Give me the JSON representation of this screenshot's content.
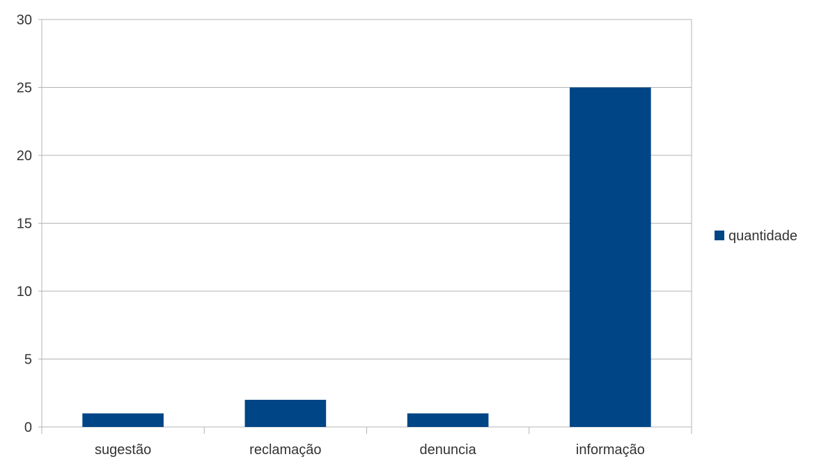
{
  "chart_data": {
    "type": "bar",
    "title": "",
    "xlabel": "",
    "ylabel": "",
    "categories": [
      "sugestão",
      "reclamação",
      "denuncia",
      "informação"
    ],
    "series": [
      {
        "name": "quantidade",
        "color": "#004586",
        "values": [
          1,
          2,
          1,
          25
        ]
      }
    ],
    "ylim": [
      0,
      30
    ],
    "yticks": [
      0,
      5,
      10,
      15,
      20,
      25,
      30
    ],
    "grid": true,
    "legend_placement": "right"
  }
}
